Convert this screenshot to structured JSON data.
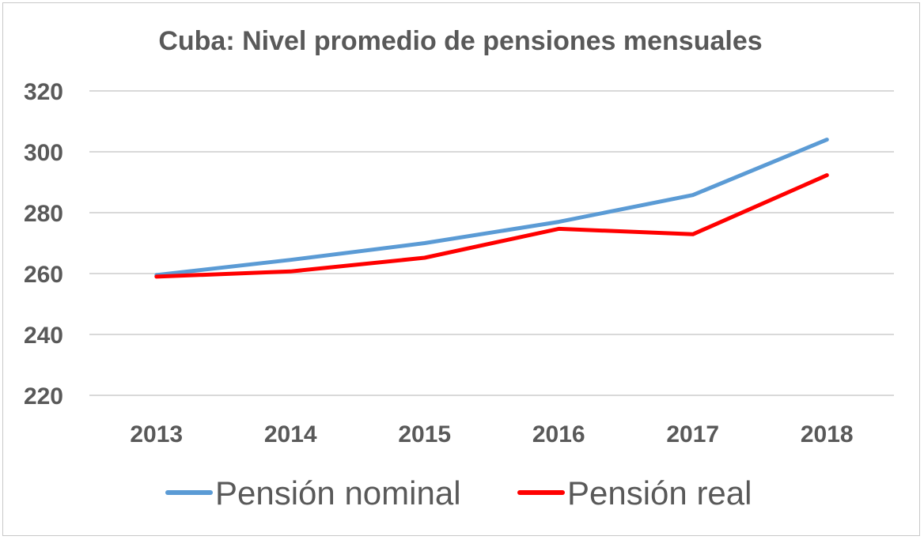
{
  "chart_data": {
    "type": "line",
    "title": "Cuba: Nivel promedio de pensiones mensuales",
    "xlabel": "",
    "ylabel": "",
    "categories": [
      "2013",
      "2014",
      "2015",
      "2016",
      "2017",
      "2018"
    ],
    "y_ticks": [
      "220",
      "240",
      "260",
      "280",
      "300",
      "320"
    ],
    "ylim": [
      220,
      320
    ],
    "grid": true,
    "legend_position": "bottom",
    "series": [
      {
        "name": "Pensión nominal",
        "color": "#5b9bd5",
        "values": [
          259.5,
          264.5,
          270,
          277,
          285.8,
          304
        ]
      },
      {
        "name": "Pensión real",
        "color": "#ff0000",
        "values": [
          259,
          260.7,
          265.2,
          274.7,
          272.9,
          292.3
        ]
      }
    ]
  }
}
